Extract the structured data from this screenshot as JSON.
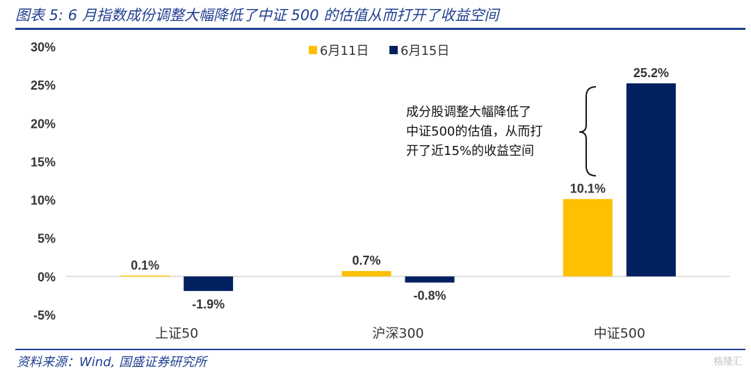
{
  "figure": {
    "title": "图表 5:  6 月指数成份调整大幅降低了中证 500 的估值从而打开了收益空间",
    "source": "资料来源：Wind, 国盛证券研究所",
    "watermark": "格隆汇"
  },
  "colors": {
    "series1": "#FFC000",
    "series2": "#002060",
    "frame": "#1f3f8f",
    "text": "#333333",
    "axis": "#bfbfbf"
  },
  "chart_data": {
    "type": "bar",
    "categories": [
      "上证50",
      "沪深300",
      "中证500"
    ],
    "series": [
      {
        "name": "6月11日",
        "values": [
          0.1,
          0.7,
          10.1
        ],
        "labels": [
          "0.1%",
          "0.7%",
          "10.1%"
        ]
      },
      {
        "name": "6月15日",
        "values": [
          -1.9,
          -0.8,
          25.2
        ],
        "labels": [
          "-1.9%",
          "-0.8%",
          "25.2%"
        ]
      }
    ],
    "ylim": [
      -5,
      30
    ],
    "yticks": [
      30,
      25,
      20,
      15,
      10,
      5,
      0,
      -5
    ],
    "ytick_labels": [
      "30%",
      "25%",
      "20%",
      "15%",
      "10%",
      "5%",
      "0%",
      "-5%"
    ],
    "grid": false,
    "legend": "top-center",
    "annotation": {
      "lines": [
        "成分股调整大幅降低了",
        "中证500的估值，从而打",
        "开了近15%的收益空间"
      ]
    }
  }
}
